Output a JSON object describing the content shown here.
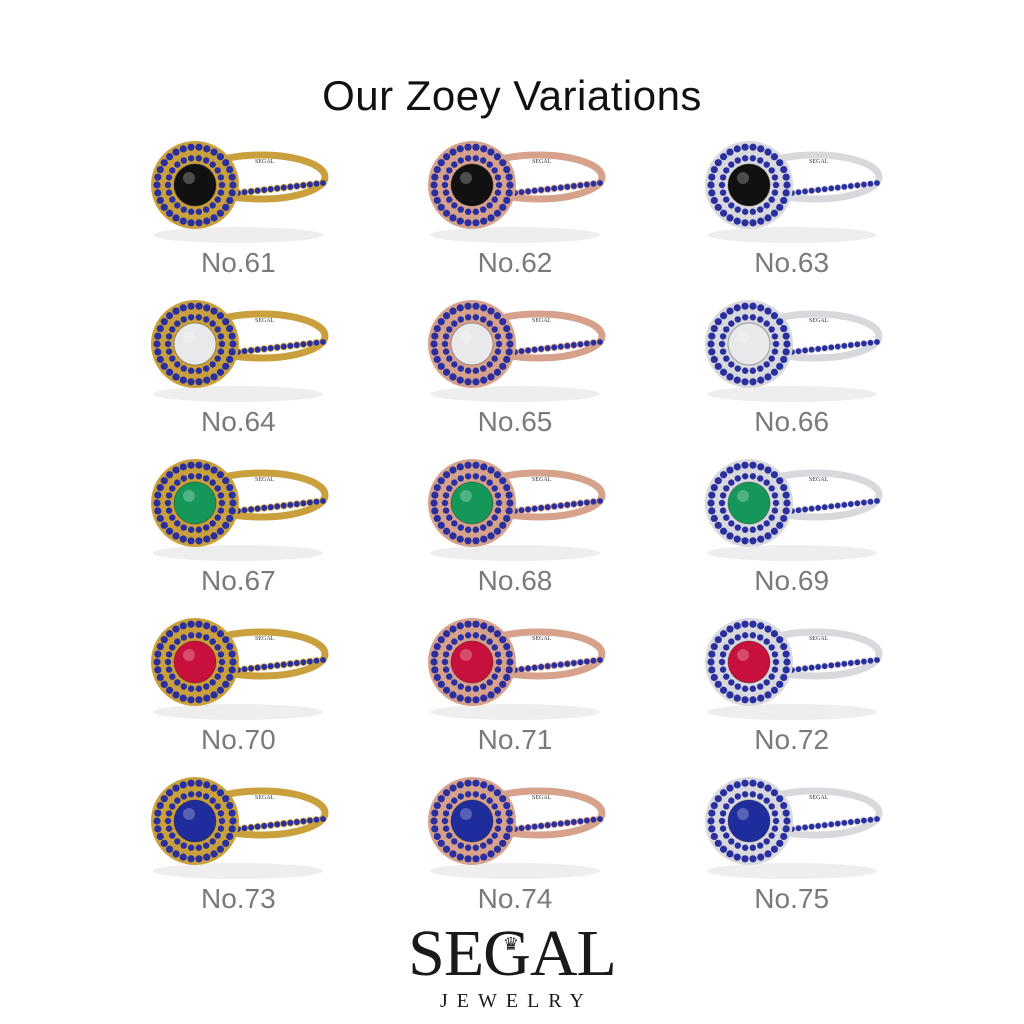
{
  "title": "Our Zoey Variations",
  "metal_colors": {
    "yellow": "#c9a03c",
    "rose": "#d6a28c",
    "white": "#d9d9dd"
  },
  "stone_colors": {
    "black": "#111111",
    "diamond": "#e9e9ec",
    "emerald": "#16975a",
    "ruby": "#c8103c",
    "sapphire": "#1f2c9c"
  },
  "pave_color": "#2a2fa0",
  "items": [
    {
      "label": "No.61",
      "metal": "yellow",
      "stone": "black"
    },
    {
      "label": "No.62",
      "metal": "rose",
      "stone": "black"
    },
    {
      "label": "No.63",
      "metal": "white",
      "stone": "black"
    },
    {
      "label": "No.64",
      "metal": "yellow",
      "stone": "diamond"
    },
    {
      "label": "No.65",
      "metal": "rose",
      "stone": "diamond"
    },
    {
      "label": "No.66",
      "metal": "white",
      "stone": "diamond"
    },
    {
      "label": "No.67",
      "metal": "yellow",
      "stone": "emerald"
    },
    {
      "label": "No.68",
      "metal": "rose",
      "stone": "emerald"
    },
    {
      "label": "No.69",
      "metal": "white",
      "stone": "emerald"
    },
    {
      "label": "No.70",
      "metal": "yellow",
      "stone": "ruby"
    },
    {
      "label": "No.71",
      "metal": "rose",
      "stone": "ruby"
    },
    {
      "label": "No.72",
      "metal": "white",
      "stone": "ruby"
    },
    {
      "label": "No.73",
      "metal": "yellow",
      "stone": "sapphire"
    },
    {
      "label": "No.74",
      "metal": "rose",
      "stone": "sapphire"
    },
    {
      "label": "No.75",
      "metal": "white",
      "stone": "sapphire"
    }
  ],
  "engraving": "SEGAL",
  "logo": {
    "name": "SEGAL",
    "subtitle": "JEWELRY"
  }
}
